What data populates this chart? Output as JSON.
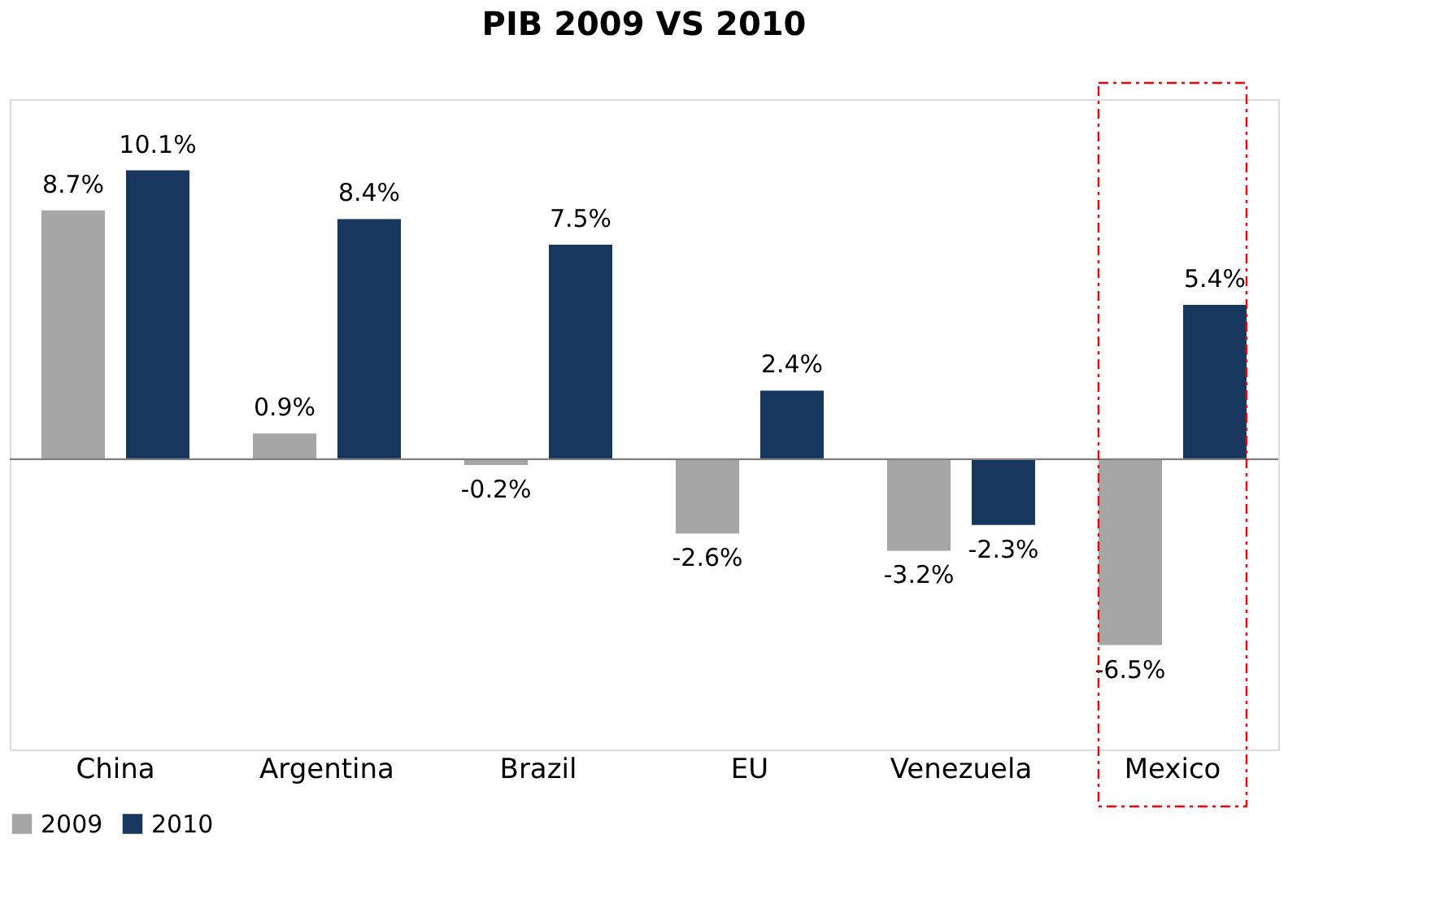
{
  "chart_data": {
    "type": "bar",
    "title": "PIB 2009 VS 2010",
    "categories": [
      "China",
      "Argentina",
      "Brazil",
      "EU",
      "Venezuela",
      "Mexico"
    ],
    "series": [
      {
        "name": "2009",
        "color": "#a6a6a6",
        "values": [
          8.7,
          0.9,
          -0.2,
          -2.6,
          -3.2,
          -6.5
        ],
        "value_labels": [
          "8.7%",
          "0.9%",
          "-0.2%",
          "-2.6%",
          "-3.2%",
          "-6.5%"
        ]
      },
      {
        "name": "2010",
        "color": "#17375e",
        "values": [
          10.1,
          8.4,
          7.5,
          2.4,
          -2.3,
          5.4
        ],
        "value_labels": [
          "10.1%",
          "8.4%",
          "7.5%",
          "2.4%",
          "-2.3%",
          "5.4%"
        ]
      }
    ],
    "legend": "bottom"
  }
}
